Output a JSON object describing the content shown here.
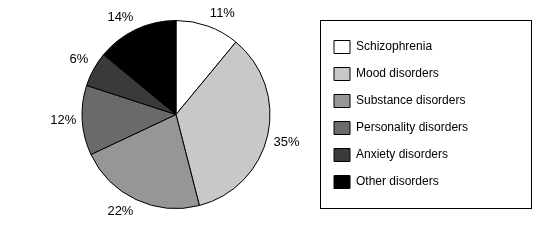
{
  "chart_data": {
    "type": "pie",
    "categories": [
      "Schizophrenia",
      "Mood disorders",
      "Substance disorders",
      "Personality disorders",
      "Anxiety disorders",
      "Other disorders"
    ],
    "values": [
      11,
      35,
      22,
      12,
      6,
      14
    ],
    "value_labels": [
      "11%",
      "35%",
      "22%",
      "12%",
      "6%",
      "14%"
    ],
    "colors": [
      "#ffffff",
      "#c8c8c8",
      "#969696",
      "#6a6a6a",
      "#3a3a3a",
      "#000000"
    ],
    "data_labels": true,
    "legend": "right"
  }
}
